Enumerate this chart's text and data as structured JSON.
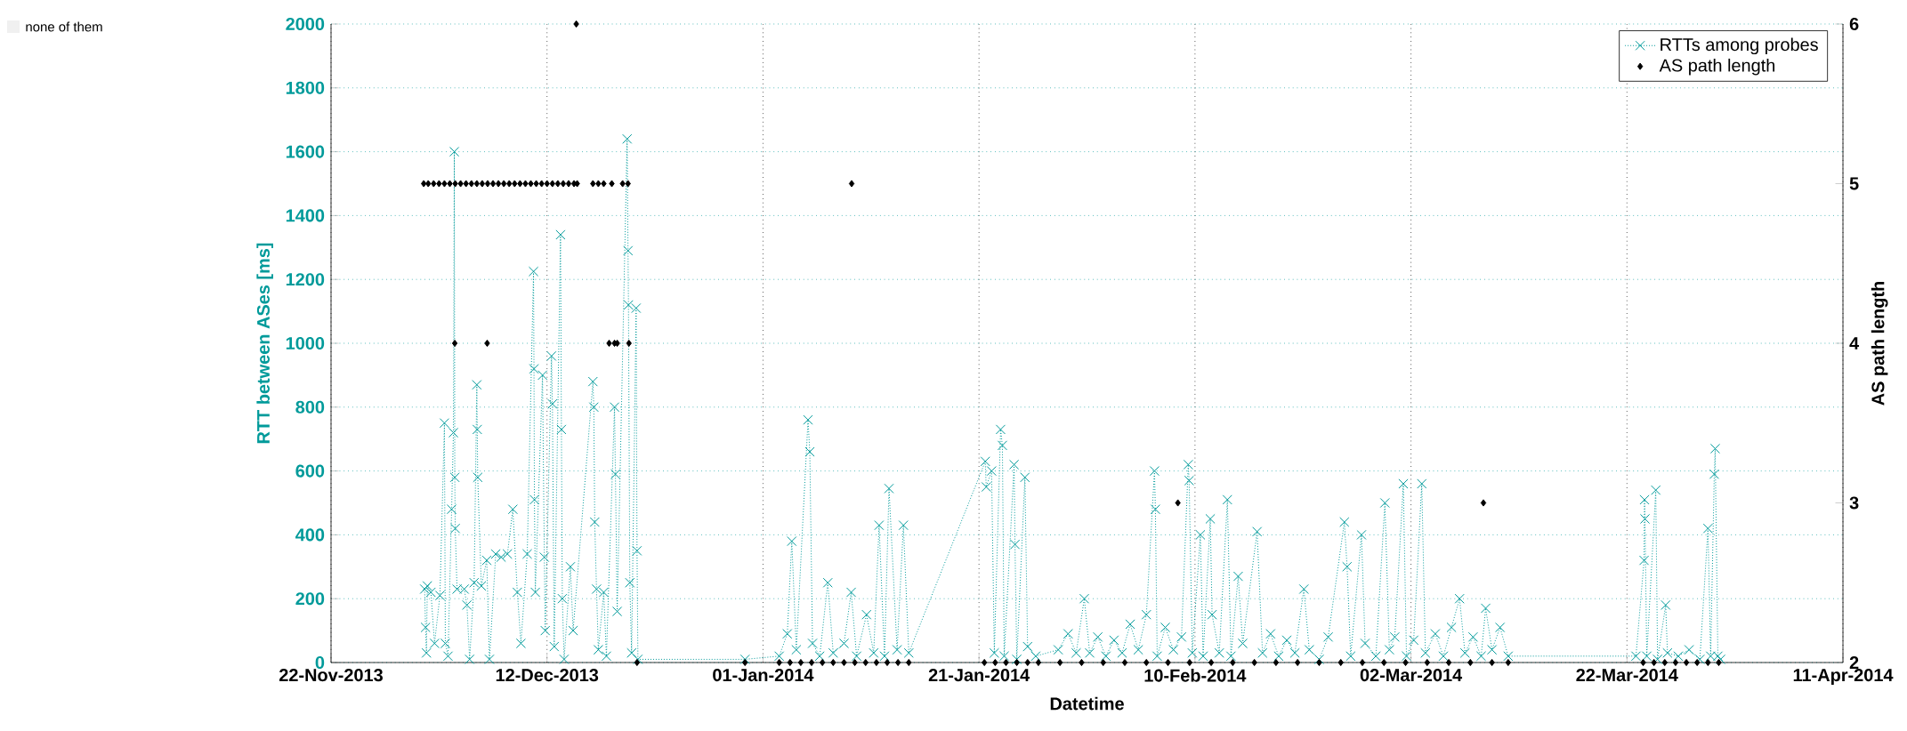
{
  "chart_data": {
    "type": "line",
    "xlabel": "Datetime",
    "ylabel": "RTT between ASes [ms]",
    "y2label": "AS path length",
    "xlim": [
      "2013-11-22",
      "2014-04-11"
    ],
    "xticks": [
      {
        "value": "2013-11-22",
        "label": "22-Nov-2013"
      },
      {
        "value": "2013-12-12",
        "label": "12-Dec-2013"
      },
      {
        "value": "2014-01-01",
        "label": "01-Jan-2014"
      },
      {
        "value": "2014-01-21",
        "label": "21-Jan-2014"
      },
      {
        "value": "2014-02-10",
        "label": "10-Feb-2014"
      },
      {
        "value": "2014-03-02",
        "label": "02-Mar-2014"
      },
      {
        "value": "2014-03-22",
        "label": "22-Mar-2014"
      },
      {
        "value": "2014-04-11",
        "label": "11-Apr-2014"
      }
    ],
    "ylim": [
      0,
      2000
    ],
    "yticks": [
      0,
      200,
      400,
      600,
      800,
      1000,
      1200,
      1400,
      1600,
      1800,
      2000
    ],
    "y2lim": [
      2,
      6
    ],
    "y2ticks": [
      2,
      3,
      4,
      5,
      6
    ],
    "grid": true,
    "legend": "top right",
    "marker": "cross",
    "line_style": "dotted",
    "annotations": [
      "none of them"
    ],
    "series": [
      {
        "name": "RTTs among probes",
        "color": "#009a9a",
        "x": [
          "2013-11-30T16:00",
          "2013-11-30T18:00",
          "2013-11-30T20:00",
          "2013-11-30T22:00",
          "2013-12-01T06:00",
          "2013-12-01T14:00",
          "2013-12-02T02:00",
          "2013-12-02T12:00",
          "2013-12-02T14:00",
          "2013-12-02T20:00",
          "2013-12-03T04:00",
          "2013-12-03T08:00",
          "2013-12-03T10:00",
          "2013-12-03T11:00",
          "2013-12-03T12:00",
          "2013-12-03T16:00",
          "2013-12-04T08:00",
          "2013-12-04T14:00",
          "2013-12-04T20:00",
          "2013-12-05T06:00",
          "2013-12-05T12:00",
          "2013-12-05T13:00",
          "2013-12-05T14:00",
          "2013-12-05T22:00",
          "2013-12-06T10:00",
          "2013-12-06T16:00",
          "2013-12-07T06:00",
          "2013-12-07T18:00",
          "2013-12-08T08:00",
          "2013-12-08T20:00",
          "2013-12-09T06:00",
          "2013-12-09T14:00",
          "2013-12-10T04:00",
          "2013-12-10T18:00",
          "2013-12-10T19:00",
          "2013-12-10T20:00",
          "2013-12-10T22:00",
          "2013-12-11T14:00",
          "2013-12-11T18:00",
          "2013-12-11T20:00",
          "2013-12-12T10:00",
          "2013-12-12T12:00",
          "2013-12-12T16:00",
          "2013-12-13T06:00",
          "2013-12-13T08:00",
          "2013-12-13T10:00",
          "2013-12-13T14:00",
          "2013-12-14T04:00",
          "2013-12-14T10:00",
          "2013-12-16T06:00",
          "2013-12-16T08:00",
          "2013-12-16T10:00",
          "2013-12-16T14:00",
          "2013-12-16T18:00",
          "2013-12-17T06:00",
          "2013-12-17T12:00",
          "2013-12-18T06:00",
          "2013-12-18T08:00",
          "2013-12-18T12:00",
          "2013-12-19T10:00",
          "2013-12-19T12:00",
          "2013-12-19T13:00",
          "2013-12-19T16:00",
          "2013-12-19T20:00",
          "2013-12-20T06:00",
          "2013-12-20T08:00",
          "2013-12-20T10:00",
          "2013-12-30T08:00",
          "2014-01-02T12:00",
          "2014-01-03T06:00",
          "2014-01-03T16:00",
          "2014-01-04T02:00",
          "2014-01-05T04:00",
          "2014-01-05T08:00",
          "2014-01-05T14:00",
          "2014-01-06T06:00",
          "2014-01-07T00:00",
          "2014-01-07T12:00",
          "2014-01-08T12:00",
          "2014-01-09T04:00",
          "2014-01-09T16:00",
          "2014-01-10T14:00",
          "2014-01-11T06:00",
          "2014-01-11T18:00",
          "2014-01-12T06:00",
          "2014-01-12T16:00",
          "2014-01-13T10:00",
          "2014-01-14T00:00",
          "2014-01-14T12:00",
          "2014-01-21T14:00",
          "2014-01-21T16:00",
          "2014-01-22T04:00",
          "2014-01-22T10:00",
          "2014-01-23T00:00",
          "2014-01-23T04:00",
          "2014-01-23T08:00",
          "2014-01-24T06:00",
          "2014-01-24T08:00",
          "2014-01-24T12:00",
          "2014-01-25T06:00",
          "2014-01-25T12:00",
          "2014-01-26T06:00",
          "2014-01-28T08:00",
          "2014-01-29T06:00",
          "2014-01-30T00:00",
          "2014-01-30T18:00",
          "2014-01-31T06:00",
          "2014-02-01T00:00",
          "2014-02-01T18:00",
          "2014-02-02T12:00",
          "2014-02-03T06:00",
          "2014-02-04T00:00",
          "2014-02-04T18:00",
          "2014-02-05T12:00",
          "2014-02-06T06:00",
          "2014-02-06T08:00",
          "2014-02-06T12:00",
          "2014-02-07T06:00",
          "2014-02-08T00:00",
          "2014-02-08T18:00",
          "2014-02-09T09:00",
          "2014-02-09T11:00",
          "2014-02-09T18:00",
          "2014-02-10T12:00",
          "2014-02-10T18:00",
          "2014-02-11T10:00",
          "2014-02-11T14:00",
          "2014-02-12T06:00",
          "2014-02-13T00:00",
          "2014-02-13T08:00",
          "2014-02-14T00:00",
          "2014-02-14T10:00",
          "2014-02-15T18:00",
          "2014-02-16T06:00",
          "2014-02-17T00:00",
          "2014-02-17T18:00",
          "2014-02-18T12:00",
          "2014-02-19T06:00",
          "2014-02-20T02:00",
          "2014-02-20T14:00",
          "2014-02-21T12:00",
          "2014-02-22T08:00",
          "2014-02-23T20:00",
          "2014-02-24T02:00",
          "2014-02-24T10:00",
          "2014-02-25T10:00",
          "2014-02-25T18:00",
          "2014-02-26T18:00",
          "2014-02-27T14:00",
          "2014-02-28T00:00",
          "2014-02-28T12:00",
          "2014-03-01T07:00",
          "2014-03-01T14:00",
          "2014-03-02T06:00",
          "2014-03-03T00:00",
          "2014-03-03T08:00",
          "2014-03-04T06:00",
          "2014-03-05T00:00",
          "2014-03-05T18:00",
          "2014-03-06T12:00",
          "2014-03-07T00:00",
          "2014-03-07T18:00",
          "2014-03-08T12:00",
          "2014-03-08T22:00",
          "2014-03-09T12:00",
          "2014-03-10T06:00",
          "2014-03-11T00:00",
          "2014-03-22T20:00",
          "2014-03-23T14:00",
          "2014-03-23T15:00",
          "2014-03-23T16:00",
          "2014-03-23T20:00",
          "2014-03-24T16:00",
          "2014-03-24T20:00",
          "2014-03-25T14:00",
          "2014-03-25T18:00",
          "2014-03-26T18:00",
          "2014-03-27T18:00",
          "2014-03-28T18:00",
          "2014-03-29T12:00",
          "2014-03-29T18:00",
          "2014-03-30T02:00",
          "2014-03-30T04:00",
          "2014-03-30T10:00",
          "2014-03-30T16:00"
        ],
        "values": [
          230,
          110,
          30,
          240,
          220,
          60,
          210,
          750,
          60,
          20,
          480,
          720,
          1600,
          580,
          420,
          230,
          230,
          180,
          10,
          250,
          870,
          730,
          580,
          240,
          320,
          10,
          340,
          330,
          340,
          480,
          220,
          60,
          340,
          1225,
          920,
          510,
          220,
          900,
          330,
          100,
          960,
          810,
          50,
          1340,
          730,
          200,
          10,
          300,
          100,
          880,
          800,
          440,
          230,
          40,
          220,
          20,
          800,
          590,
          160,
          1640,
          1290,
          1120,
          250,
          30,
          1110,
          350,
          10,
          10,
          20,
          90,
          380,
          40,
          760,
          660,
          60,
          20,
          250,
          30,
          60,
          220,
          20,
          150,
          30,
          430,
          20,
          545,
          40,
          430,
          30,
          630,
          550,
          600,
          30,
          730,
          680,
          20,
          620,
          370,
          10,
          580,
          50,
          20,
          40,
          90,
          30,
          200,
          30,
          80,
          20,
          70,
          30,
          120,
          40,
          150,
          600,
          480,
          20,
          110,
          40,
          80,
          620,
          570,
          30,
          400,
          20,
          450,
          150,
          30,
          510,
          20,
          270,
          60,
          410,
          30,
          90,
          20,
          70,
          30,
          230,
          40,
          10,
          80,
          440,
          300,
          20,
          400,
          60,
          20,
          500,
          40,
          80,
          560,
          20,
          70,
          560,
          30,
          90,
          20,
          110,
          200,
          30,
          80,
          20,
          170,
          40,
          110,
          20,
          20,
          320,
          510,
          450,
          20,
          540,
          10,
          180,
          30,
          20,
          40,
          10,
          420,
          20,
          590,
          670,
          20,
          10
        ]
      },
      {
        "name": "AS path length",
        "color": "#000000",
        "type": "scatter",
        "marker": "diamond",
        "axis": "y2",
        "x": [
          "2013-11-30T14:00",
          "2013-12-01T00:00",
          "2013-12-01T12:00",
          "2013-12-02T00:00",
          "2013-12-02T12:00",
          "2013-12-03T00:00",
          "2013-12-03T11:00",
          "2013-12-03T12:00",
          "2013-12-04T00:00",
          "2013-12-04T12:00",
          "2013-12-05T00:00",
          "2013-12-05T12:00",
          "2013-12-06T00:00",
          "2013-12-06T11:00",
          "2013-12-06T12:00",
          "2013-12-07T00:00",
          "2013-12-07T12:00",
          "2013-12-08T00:00",
          "2013-12-08T12:00",
          "2013-12-09T00:00",
          "2013-12-09T12:00",
          "2013-12-10T00:00",
          "2013-12-10T12:00",
          "2013-12-11T00:00",
          "2013-12-11T12:00",
          "2013-12-12T00:00",
          "2013-12-12T12:00",
          "2013-12-13T00:00",
          "2013-12-13T12:00",
          "2013-12-14T00:00",
          "2013-12-14T12:00",
          "2013-12-14T17:00",
          "2013-12-14T19:00",
          "2013-12-16T06:00",
          "2013-12-16T18:00",
          "2013-12-17T06:00",
          "2013-12-17T18:00",
          "2013-12-18T00:00",
          "2013-12-18T06:00",
          "2013-12-18T12:00",
          "2013-12-19T00:00",
          "2013-12-19T12:00",
          "2013-12-19T14:00",
          "2013-12-20T08:00",
          "2013-12-30T08:00",
          "2014-01-02T12:00",
          "2014-01-03T12:00",
          "2014-01-04T12:00",
          "2014-01-05T12:00",
          "2014-01-06T12:00",
          "2014-01-07T12:00",
          "2014-01-08T12:00",
          "2014-01-09T05:00",
          "2014-01-09T12:00",
          "2014-01-10T12:00",
          "2014-01-11T12:00",
          "2014-01-12T12:00",
          "2014-01-13T12:00",
          "2014-01-14T12:00",
          "2014-01-21T12:00",
          "2014-01-22T12:00",
          "2014-01-23T12:00",
          "2014-01-24T12:00",
          "2014-01-25T12:00",
          "2014-01-26T12:00",
          "2014-01-28T12:00",
          "2014-01-30T12:00",
          "2014-02-01T12:00",
          "2014-02-03T12:00",
          "2014-02-05T12:00",
          "2014-02-07T12:00",
          "2014-02-08T10:00",
          "2014-02-09T12:00",
          "2014-02-11T12:00",
          "2014-02-13T12:00",
          "2014-02-15T12:00",
          "2014-02-17T12:00",
          "2014-02-19T12:00",
          "2014-02-21T12:00",
          "2014-02-23T12:00",
          "2014-02-25T12:00",
          "2014-02-27T12:00",
          "2014-03-01T12:00",
          "2014-03-03T12:00",
          "2014-03-05T12:00",
          "2014-03-07T12:00",
          "2014-03-08T17:00",
          "2014-03-09T12:00",
          "2014-03-11T00:00",
          "2014-03-23T12:00",
          "2014-03-24T12:00",
          "2014-03-25T12:00",
          "2014-03-26T12:00",
          "2014-03-27T12:00",
          "2014-03-28T12:00",
          "2014-03-29T12:00",
          "2014-03-30T12:00"
        ],
        "values": [
          5,
          5,
          5,
          5,
          5,
          5,
          4,
          5,
          5,
          5,
          5,
          5,
          5,
          4,
          5,
          5,
          5,
          5,
          5,
          5,
          5,
          5,
          5,
          5,
          5,
          5,
          5,
          5,
          5,
          5,
          5,
          6,
          5,
          5,
          5,
          5,
          4,
          5,
          4,
          4,
          5,
          5,
          4,
          2,
          2,
          2,
          2,
          2,
          2,
          2,
          2,
          2,
          5,
          2,
          2,
          2,
          2,
          2,
          2,
          2,
          2,
          2,
          2,
          2,
          2,
          2,
          2,
          2,
          2,
          2,
          2,
          3,
          2,
          2,
          2,
          2,
          2,
          2,
          2,
          2,
          2,
          2,
          2,
          2,
          2,
          2,
          3,
          2,
          2,
          2,
          2,
          2,
          2,
          2,
          2,
          2,
          2
        ]
      }
    ]
  }
}
